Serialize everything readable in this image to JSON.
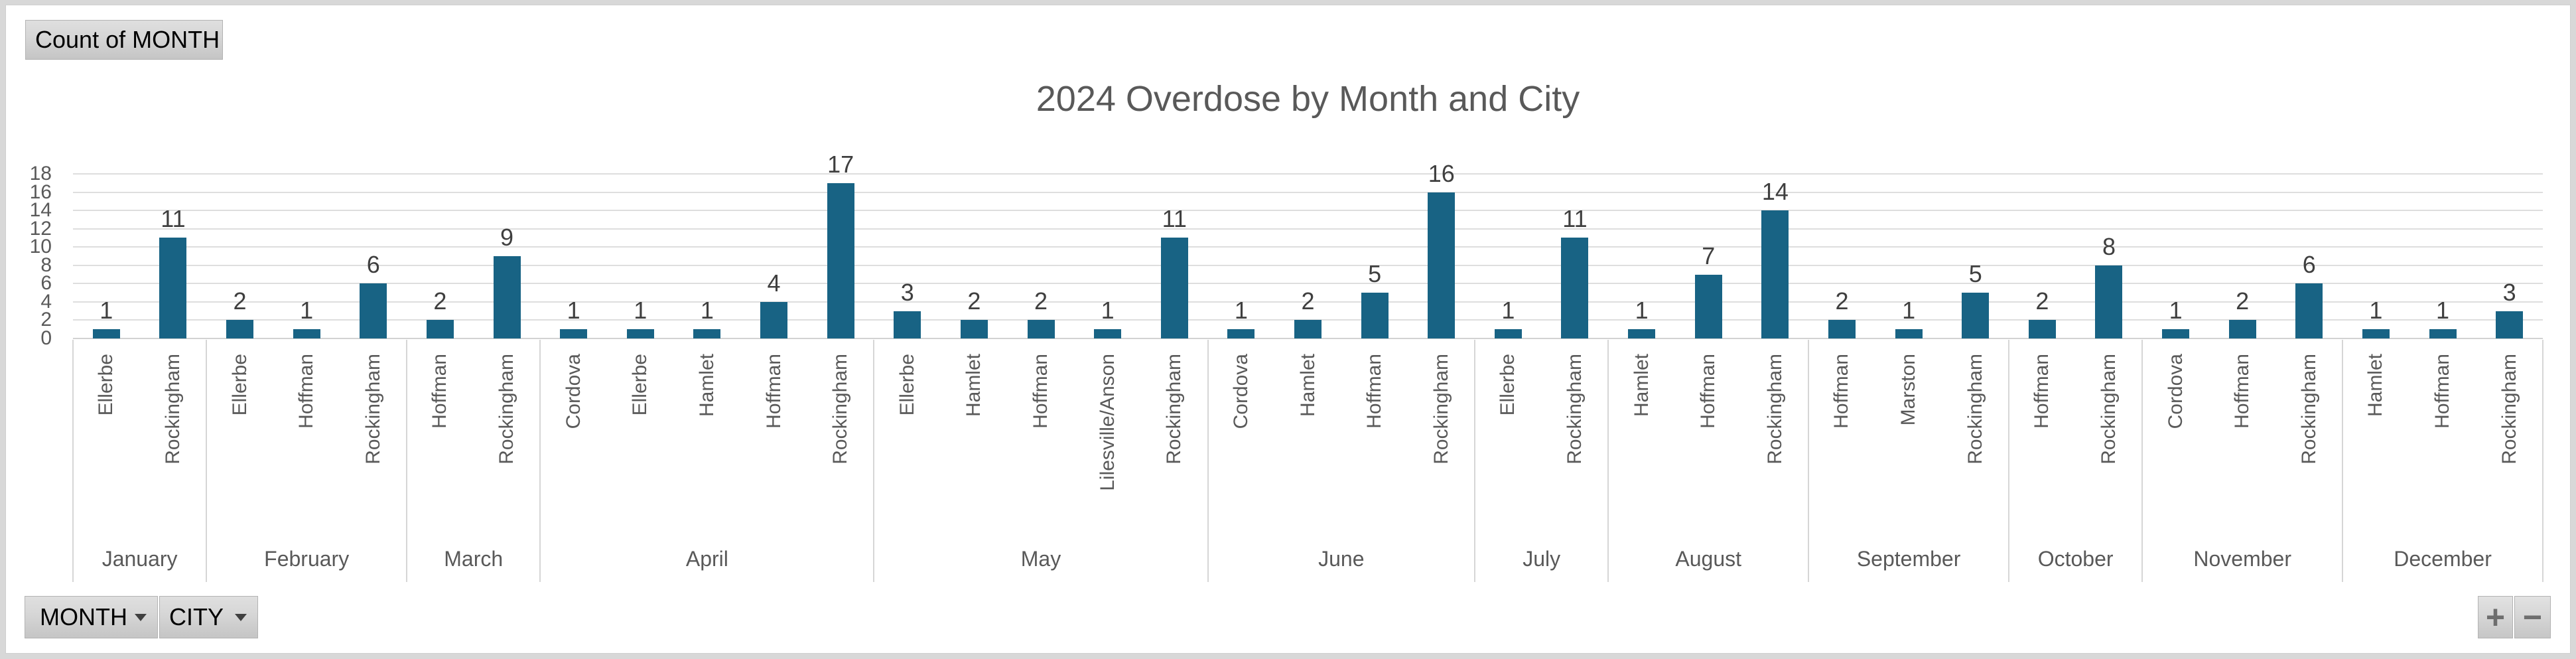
{
  "pivot": {
    "value_field_label": "Count of MONTH",
    "month_field_label": "MONTH",
    "city_field_label": "CITY",
    "expand_label": "+",
    "collapse_label": "−"
  },
  "chart_data": {
    "type": "bar",
    "title": "2024 Overdose by Month and City",
    "xlabel": "",
    "ylabel": "",
    "ylim": [
      0,
      18
    ],
    "ytick_step": 2,
    "grid": true,
    "legend": "none",
    "bar_color": "#186384",
    "axis_text_color": "#595959",
    "data_label_color": "#3F3F3F",
    "groups": [
      {
        "month": "January",
        "cities": [
          "Ellerbe",
          "Rockingham"
        ],
        "values": [
          1,
          11
        ]
      },
      {
        "month": "February",
        "cities": [
          "Ellerbe",
          "Hoffman",
          "Rockingham"
        ],
        "values": [
          2,
          1,
          6
        ]
      },
      {
        "month": "March",
        "cities": [
          "Hoffman",
          "Rockingham"
        ],
        "values": [
          2,
          9
        ]
      },
      {
        "month": "April",
        "cities": [
          "Cordova",
          "Ellerbe",
          "Hamlet",
          "Hoffman",
          "Rockingham"
        ],
        "values": [
          1,
          1,
          1,
          4,
          17
        ]
      },
      {
        "month": "May",
        "cities": [
          "Ellerbe",
          "Hamlet",
          "Hoffman",
          "Lilesville/Anson",
          "Rockingham"
        ],
        "values": [
          3,
          2,
          2,
          1,
          11
        ]
      },
      {
        "month": "June",
        "cities": [
          "Cordova",
          "Hamlet",
          "Hoffman",
          "Rockingham"
        ],
        "values": [
          1,
          2,
          5,
          16
        ]
      },
      {
        "month": "July",
        "cities": [
          "Ellerbe",
          "Rockingham"
        ],
        "values": [
          1,
          11
        ]
      },
      {
        "month": "August",
        "cities": [
          "Hamlet",
          "Hoffman",
          "Rockingham"
        ],
        "values": [
          1,
          7,
          14
        ]
      },
      {
        "month": "September",
        "cities": [
          "Hoffman",
          "Marston",
          "Rockingham"
        ],
        "values": [
          2,
          1,
          5
        ]
      },
      {
        "month": "October",
        "cities": [
          "Hoffman",
          "Rockingham"
        ],
        "values": [
          2,
          8
        ]
      },
      {
        "month": "November",
        "cities": [
          "Cordova",
          "Hoffman",
          "Rockingham"
        ],
        "values": [
          1,
          2,
          6
        ]
      },
      {
        "month": "December",
        "cities": [
          "Hamlet",
          "Hoffman",
          "Rockingham"
        ],
        "values": [
          1,
          1,
          3
        ]
      }
    ]
  }
}
